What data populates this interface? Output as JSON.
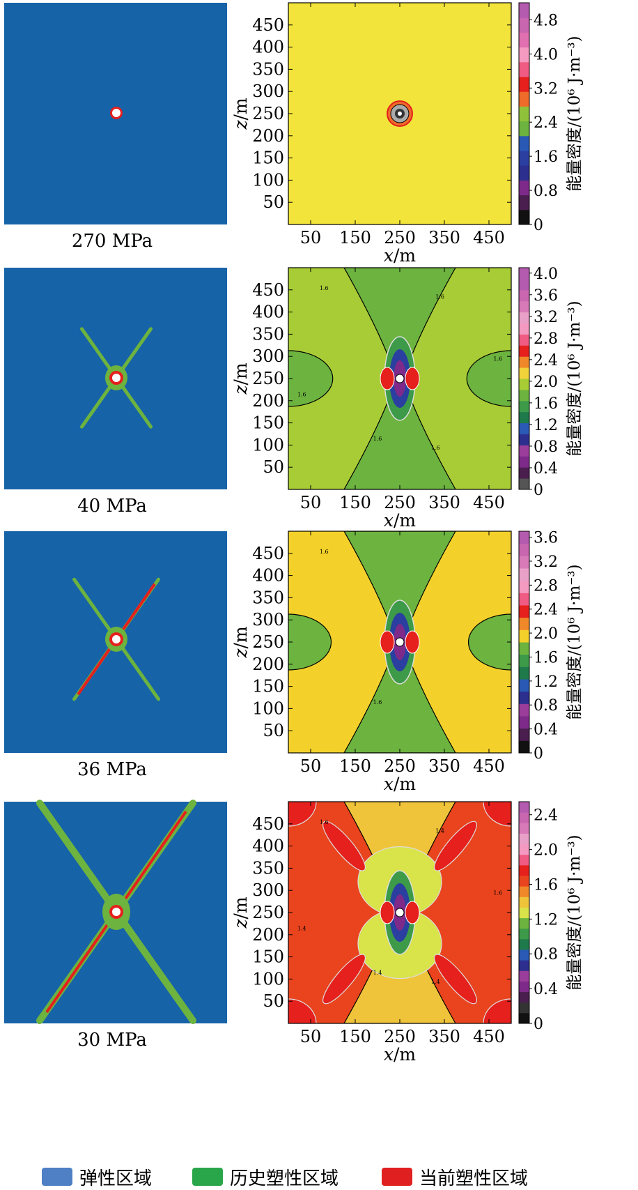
{
  "chart_data": [
    {
      "type": "heatmap",
      "pressure_label": "270 MPa",
      "xlabel": "x/m",
      "ylabel": "z/m",
      "colorbar_label": "能量密度/(10⁶ J·m⁻³)",
      "xlim": [
        0,
        500
      ],
      "ylim": [
        0,
        500
      ],
      "xticks": [
        50,
        150,
        250,
        350,
        450
      ],
      "yticks": [
        50,
        100,
        150,
        200,
        250,
        300,
        350,
        400,
        450
      ],
      "colorbar_ticks": [
        0,
        0.8,
        1.6,
        2.4,
        3.2,
        4.0,
        4.8
      ],
      "colorbar_max": 5.2,
      "background_level": 2.0,
      "plastic_zone": {
        "arms": false,
        "arm_length": 0
      }
    },
    {
      "type": "heatmap",
      "pressure_label": "40 MPa",
      "xlabel": "x/m",
      "ylabel": "z/m",
      "colorbar_label": "能量密度/(10⁶ J·m⁻³)",
      "xlim": [
        0,
        500
      ],
      "ylim": [
        0,
        500
      ],
      "xticks": [
        50,
        150,
        250,
        350,
        450
      ],
      "yticks": [
        50,
        100,
        150,
        200,
        250,
        300,
        350,
        400,
        450
      ],
      "colorbar_ticks": [
        0,
        0.4,
        0.8,
        1.2,
        1.6,
        2.0,
        2.4,
        2.8,
        3.2,
        3.6,
        4.0
      ],
      "colorbar_max": 4.1,
      "contour_labels": [
        "1.6",
        "1.6",
        "1.6",
        "1.6",
        "1.6",
        "1.6"
      ],
      "plastic_zone": {
        "arms": true,
        "arm_length": 90
      }
    },
    {
      "type": "heatmap",
      "pressure_label": "36 MPa",
      "xlabel": "x/m",
      "ylabel": "z/m",
      "colorbar_label": "能量密度/(10⁶ J·m⁻³)",
      "xlim": [
        0,
        500
      ],
      "ylim": [
        0,
        500
      ],
      "xticks": [
        50,
        150,
        250,
        350,
        450
      ],
      "yticks": [
        50,
        100,
        150,
        200,
        250,
        300,
        350,
        400,
        450
      ],
      "colorbar_ticks": [
        0,
        0.4,
        0.8,
        1.2,
        1.6,
        2.0,
        2.4,
        2.8,
        3.2,
        3.6
      ],
      "colorbar_max": 3.7,
      "contour_labels": [
        "1.6",
        "1.6"
      ],
      "plastic_zone": {
        "arms": true,
        "arm_length": 110
      }
    },
    {
      "type": "heatmap",
      "pressure_label": "30 MPa",
      "xlabel": "x/m",
      "ylabel": "z/m",
      "colorbar_label": "能量密度/(10⁶ J·m⁻³)",
      "xlim": [
        0,
        500
      ],
      "ylim": [
        0,
        500
      ],
      "xticks": [
        50,
        150,
        250,
        350,
        450
      ],
      "yticks": [
        50,
        100,
        150,
        200,
        250,
        300,
        350,
        400,
        450
      ],
      "colorbar_ticks": [
        0,
        0.4,
        0.8,
        1.2,
        1.6,
        2.0,
        2.4
      ],
      "colorbar_max": 2.55,
      "contour_labels": [
        "1.6",
        "1.4",
        "1.4",
        "1.4",
        "1.4",
        "1.6"
      ],
      "plastic_zone": {
        "arms": true,
        "arm_length": 200
      }
    }
  ],
  "legend": [
    {
      "label": "弹性区域",
      "color": "#4f7fc4"
    },
    {
      "label": "历史塑性区域",
      "color": "#2aa64a"
    },
    {
      "label": "当前塑性区域",
      "color": "#e02020"
    }
  ],
  "colors": {
    "plastic_bg": "#1763a8",
    "history_plastic": "#6cb33f",
    "current_plastic": "#e5201d"
  }
}
